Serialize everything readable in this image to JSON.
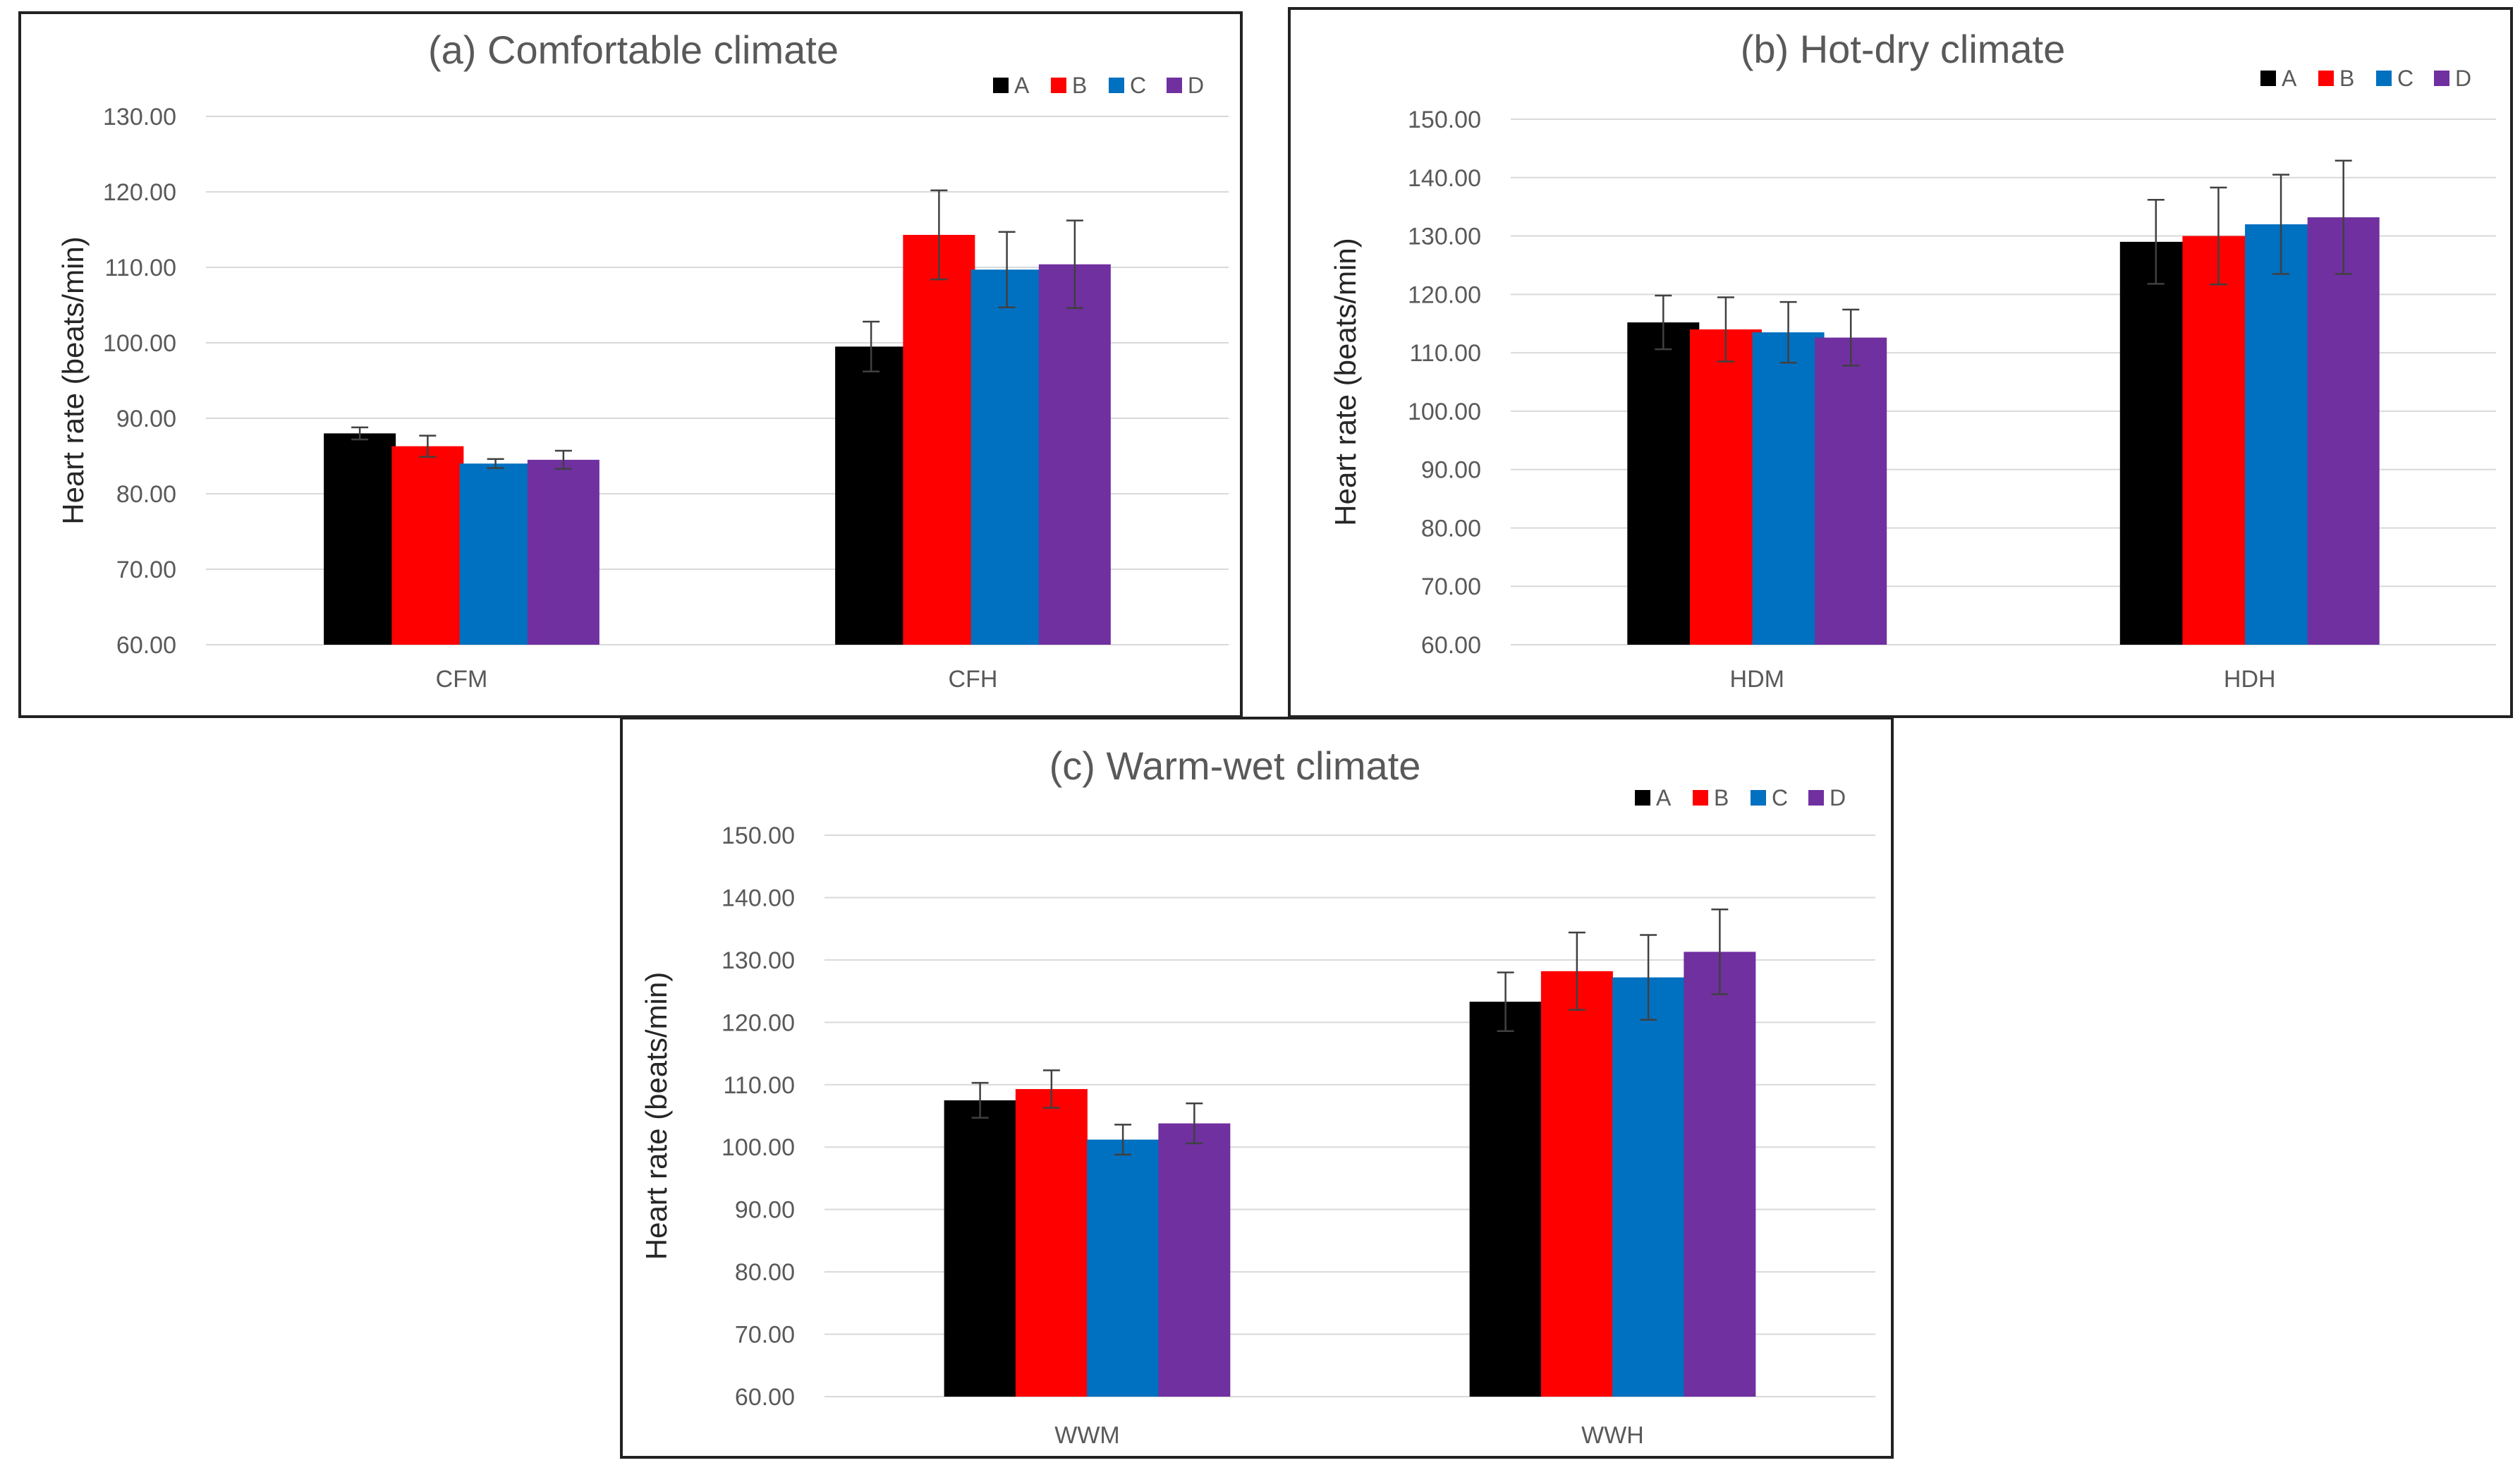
{
  "chart_data": [
    {
      "type": "bar",
      "title": "(a) Comfortable climate",
      "ylabel": "Heart rate (beats/min)",
      "xlabel": "",
      "ylim": [
        60,
        130
      ],
      "ytick_step": 10,
      "yticks": [
        "60.00",
        "70.00",
        "80.00",
        "90.00",
        "100.00",
        "110.00",
        "120.00",
        "130.00"
      ],
      "categories": [
        "CFM",
        "CFH"
      ],
      "legend_position": "top-right",
      "series": [
        {
          "name": "A",
          "color": "#000000",
          "values": [
            88.0,
            99.5
          ],
          "errors": [
            0.8,
            3.3
          ]
        },
        {
          "name": "B",
          "color": "#ff0000",
          "values": [
            86.3,
            114.3
          ],
          "errors": [
            1.4,
            5.9
          ]
        },
        {
          "name": "C",
          "color": "#0070c0",
          "values": [
            84.0,
            109.7
          ],
          "errors": [
            0.6,
            5.0
          ]
        },
        {
          "name": "D",
          "color": "#7030a0",
          "values": [
            84.5,
            110.4
          ],
          "errors": [
            1.2,
            5.8
          ]
        }
      ]
    },
    {
      "type": "bar",
      "title": "(b) Hot-dry climate",
      "ylabel": "Heart rate (beats/min)",
      "xlabel": "",
      "ylim": [
        60,
        150
      ],
      "ytick_step": 10,
      "yticks": [
        "60.00",
        "70.00",
        "80.00",
        "90.00",
        "100.00",
        "110.00",
        "120.00",
        "130.00",
        "140.00",
        "150.00"
      ],
      "categories": [
        "HDM",
        "HDH"
      ],
      "legend_position": "top-right",
      "series": [
        {
          "name": "A",
          "color": "#000000",
          "values": [
            115.2,
            129.0
          ],
          "errors": [
            4.6,
            7.2
          ]
        },
        {
          "name": "B",
          "color": "#ff0000",
          "values": [
            114.0,
            130.0
          ],
          "errors": [
            5.5,
            8.3
          ]
        },
        {
          "name": "C",
          "color": "#0070c0",
          "values": [
            113.5,
            132.0
          ],
          "errors": [
            5.2,
            8.5
          ]
        },
        {
          "name": "D",
          "color": "#7030a0",
          "values": [
            112.6,
            133.2
          ],
          "errors": [
            4.8,
            9.7
          ]
        }
      ]
    },
    {
      "type": "bar",
      "title": "(c) Warm-wet climate",
      "ylabel": "Heart rate (beats/min)",
      "xlabel": "",
      "ylim": [
        60,
        150
      ],
      "ytick_step": 10,
      "yticks": [
        "60.00",
        "70.00",
        "80.00",
        "90.00",
        "100.00",
        "110.00",
        "120.00",
        "130.00",
        "140.00",
        "150.00"
      ],
      "categories": [
        "WWM",
        "WWH"
      ],
      "legend_position": "top-right",
      "series": [
        {
          "name": "A",
          "color": "#000000",
          "values": [
            107.5,
            123.3
          ],
          "errors": [
            2.8,
            4.7
          ]
        },
        {
          "name": "B",
          "color": "#ff0000",
          "values": [
            109.3,
            128.2
          ],
          "errors": [
            3.0,
            6.2
          ]
        },
        {
          "name": "C",
          "color": "#0070c0",
          "values": [
            101.2,
            127.2
          ],
          "errors": [
            2.4,
            6.8
          ]
        },
        {
          "name": "D",
          "color": "#7030a0",
          "values": [
            103.8,
            131.3
          ],
          "errors": [
            3.2,
            6.8
          ]
        }
      ]
    }
  ]
}
